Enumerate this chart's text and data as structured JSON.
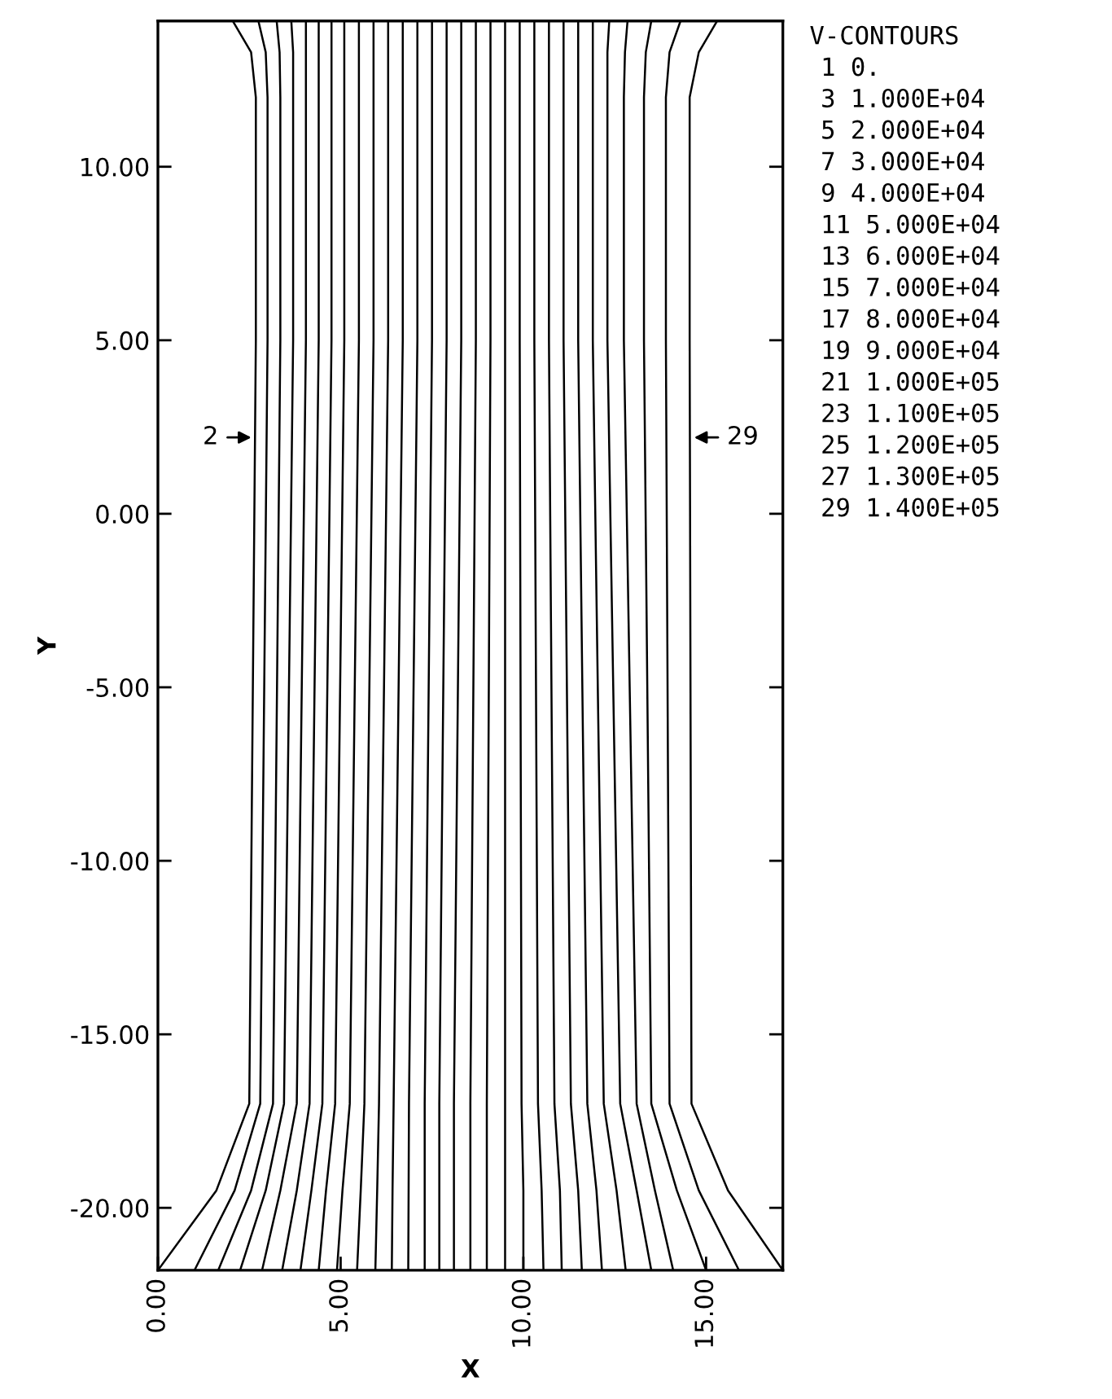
{
  "chart_data": {
    "type": "line",
    "xlabel": "X",
    "ylabel": "Y",
    "xlim": [
      0,
      17.1
    ],
    "ylim": [
      -21.8,
      14.2
    ],
    "xticks": [
      {
        "value": 0,
        "label": "0.00"
      },
      {
        "value": 5,
        "label": "5.00"
      },
      {
        "value": 10,
        "label": "10.00"
      },
      {
        "value": 15,
        "label": "15.00"
      }
    ],
    "yticks": [
      {
        "value": -20,
        "label": "-20.00"
      },
      {
        "value": -15,
        "label": "-15.00"
      },
      {
        "value": -10,
        "label": "-10.00"
      },
      {
        "value": -5,
        "label": "-5.00"
      },
      {
        "value": 0,
        "label": "0.00"
      },
      {
        "value": 5,
        "label": "5.00"
      },
      {
        "value": 10,
        "label": "10.00"
      }
    ],
    "grid": false,
    "marker": "none",
    "line_style": "solid",
    "legend_title": "V-CONTOURS",
    "annotations": [
      {
        "text": "2",
        "x": 2.68,
        "y": 2.2
      },
      {
        "text": "29",
        "x": 14.55,
        "y": 2.2
      },
      "1 0.",
      "3 1.000E+04",
      "5 2.000E+04",
      "7 3.000E+04",
      "9 4.000E+04",
      "11 5.000E+04",
      "13 6.000E+04",
      "15 7.000E+04",
      "17 8.000E+04",
      "19 9.000E+04",
      "21 1.000E+05",
      "23 1.100E+05",
      "25 1.200E+05",
      "27 1.300E+05",
      "29 1.400E+05"
    ],
    "series": [
      {
        "color": "#000000",
        "x": [
          0,
          1.6,
          2.5,
          2.68,
          2.68,
          2.55,
          2.05
        ],
        "values": [
          -21.8,
          -19.5,
          -17,
          5,
          12,
          13.3,
          14.2
        ]
      },
      {
        "color": "#000000",
        "x": [
          1.0,
          2.1,
          2.8,
          3.0,
          3.0,
          2.95,
          2.75
        ],
        "values": [
          -21.8,
          -19.5,
          -17,
          5,
          12,
          13.3,
          14.2
        ]
      },
      {
        "color": "#000000",
        "x": [
          1.65,
          2.55,
          3.15,
          3.35,
          3.35,
          3.33,
          3.25
        ],
        "values": [
          -21.8,
          -19.5,
          -17,
          5,
          12,
          13.3,
          14.2
        ]
      },
      {
        "color": "#000000",
        "x": [
          2.25,
          2.95,
          3.45,
          3.7,
          3.7,
          3.7,
          3.65
        ],
        "values": [
          -21.8,
          -19.5,
          -17,
          5,
          12,
          13.3,
          14.2
        ]
      },
      {
        "color": "#000000",
        "x": [
          2.85,
          3.35,
          3.8,
          4.05,
          4.05,
          4.05,
          4.05
        ],
        "values": [
          -21.8,
          -19.5,
          -17,
          5,
          12,
          13.3,
          14.2
        ]
      },
      {
        "color": "#000000",
        "x": [
          3.4,
          3.8,
          4.15,
          4.4,
          4.4,
          4.4,
          4.4
        ],
        "values": [
          -21.8,
          -19.5,
          -17,
          5,
          12,
          13.3,
          14.2
        ]
      },
      {
        "color": "#000000",
        "x": [
          3.9,
          4.2,
          4.5,
          4.75,
          4.75,
          4.75,
          4.75
        ],
        "values": [
          -21.8,
          -19.5,
          -17,
          5,
          12,
          13.3,
          14.2
        ]
      },
      {
        "color": "#000000",
        "x": [
          4.4,
          4.6,
          4.85,
          5.1,
          5.1,
          5.1,
          5.1
        ],
        "values": [
          -21.8,
          -19.5,
          -17,
          5,
          12,
          13.3,
          14.2
        ]
      },
      {
        "color": "#000000",
        "x": [
          4.9,
          5.05,
          5.25,
          5.5,
          5.5,
          5.5,
          5.5
        ],
        "values": [
          -21.8,
          -19.5,
          -17,
          5,
          12,
          13.3,
          14.2
        ]
      },
      {
        "color": "#000000",
        "x": [
          5.45,
          5.55,
          5.65,
          5.9,
          5.9,
          5.9,
          5.9
        ],
        "values": [
          -21.8,
          -19.5,
          -17,
          5,
          12,
          13.3,
          14.2
        ]
      },
      {
        "color": "#000000",
        "x": [
          5.95,
          6.0,
          6.05,
          6.3,
          6.3,
          6.3,
          6.3
        ],
        "values": [
          -21.8,
          -19.5,
          -17,
          5,
          12,
          13.3,
          14.2
        ]
      },
      {
        "color": "#000000",
        "x": [
          6.4,
          6.42,
          6.45,
          6.7,
          6.7,
          6.7,
          6.7
        ],
        "values": [
          -21.8,
          -19.5,
          -17,
          5,
          12,
          13.3,
          14.2
        ]
      },
      {
        "color": "#000000",
        "x": [
          6.85,
          6.86,
          6.87,
          7.1,
          7.1,
          7.1,
          7.1
        ],
        "values": [
          -21.8,
          -19.5,
          -17,
          5,
          12,
          13.3,
          14.2
        ]
      },
      {
        "color": "#000000",
        "x": [
          7.3,
          7.3,
          7.3,
          7.5,
          7.5,
          7.5,
          7.5
        ],
        "values": [
          -21.8,
          -19.5,
          -17,
          5,
          12,
          13.3,
          14.2
        ]
      },
      {
        "color": "#000000",
        "x": [
          7.7,
          7.7,
          7.7,
          7.9,
          7.9,
          7.9,
          7.9
        ],
        "values": [
          -21.8,
          -19.5,
          -17,
          5,
          12,
          13.3,
          14.2
        ]
      },
      {
        "color": "#000000",
        "x": [
          8.1,
          8.1,
          8.1,
          8.3,
          8.3,
          8.3,
          8.3
        ],
        "values": [
          -21.8,
          -19.5,
          -17,
          5,
          12,
          13.3,
          14.2
        ]
      },
      {
        "color": "#000000",
        "x": [
          8.55,
          8.55,
          8.55,
          8.7,
          8.7,
          8.7,
          8.7
        ],
        "values": [
          -21.8,
          -19.5,
          -17,
          5,
          12,
          13.3,
          14.2
        ]
      },
      {
        "color": "#000000",
        "x": [
          9.0,
          9.0,
          9.0,
          9.1,
          9.1,
          9.1,
          9.1
        ],
        "values": [
          -21.8,
          -19.5,
          -17,
          5,
          12,
          13.3,
          14.2
        ]
      },
      {
        "color": "#000000",
        "x": [
          9.5,
          9.5,
          9.5,
          9.5,
          9.5,
          9.5,
          9.5
        ],
        "values": [
          -21.8,
          -19.5,
          -17,
          5,
          12,
          13.3,
          14.2
        ]
      },
      {
        "color": "#000000",
        "x": [
          10.0,
          10.0,
          9.95,
          9.9,
          9.9,
          9.9,
          9.9
        ],
        "values": [
          -21.8,
          -19.5,
          -17,
          5,
          12,
          13.3,
          14.2
        ]
      },
      {
        "color": "#000000",
        "x": [
          10.55,
          10.5,
          10.4,
          10.3,
          10.3,
          10.3,
          10.3
        ],
        "values": [
          -21.8,
          -19.5,
          -17,
          5,
          12,
          13.3,
          14.2
        ]
      },
      {
        "color": "#000000",
        "x": [
          11.05,
          11.0,
          10.85,
          10.7,
          10.7,
          10.7,
          10.7
        ],
        "values": [
          -21.8,
          -19.5,
          -17,
          5,
          12,
          13.3,
          14.2
        ]
      },
      {
        "color": "#000000",
        "x": [
          11.6,
          11.5,
          11.3,
          11.1,
          11.1,
          11.1,
          11.1
        ],
        "values": [
          -21.8,
          -19.5,
          -17,
          5,
          12,
          13.3,
          14.2
        ]
      },
      {
        "color": "#000000",
        "x": [
          12.15,
          12.0,
          11.75,
          11.5,
          11.5,
          11.5,
          11.5
        ],
        "values": [
          -21.8,
          -19.5,
          -17,
          5,
          12,
          13.3,
          14.2
        ]
      },
      {
        "color": "#000000",
        "x": [
          12.8,
          12.55,
          12.2,
          11.9,
          11.9,
          11.9,
          11.9
        ],
        "values": [
          -21.8,
          -19.5,
          -17,
          5,
          12,
          13.3,
          14.2
        ]
      },
      {
        "color": "#000000",
        "x": [
          13.5,
          13.1,
          12.65,
          12.3,
          12.3,
          12.3,
          12.35
        ],
        "values": [
          -21.8,
          -19.5,
          -17,
          5,
          12,
          13.3,
          14.2
        ]
      },
      {
        "color": "#000000",
        "x": [
          14.1,
          13.6,
          13.1,
          12.75,
          12.75,
          12.78,
          12.85
        ],
        "values": [
          -21.8,
          -19.5,
          -17,
          5,
          12,
          13.3,
          14.2
        ]
      },
      {
        "color": "#000000",
        "x": [
          15.0,
          14.2,
          13.5,
          13.3,
          13.3,
          13.35,
          13.5
        ],
        "values": [
          -21.8,
          -19.5,
          -17,
          5,
          12,
          13.3,
          14.2
        ]
      },
      {
        "color": "#000000",
        "x": [
          15.9,
          14.8,
          14.0,
          13.9,
          13.9,
          14.0,
          14.3
        ],
        "values": [
          -21.8,
          -19.5,
          -17,
          5,
          12,
          13.3,
          14.2
        ]
      },
      {
        "color": "#000000",
        "x": [
          17.1,
          15.6,
          14.6,
          14.55,
          14.55,
          14.8,
          15.3
        ],
        "values": [
          -21.8,
          -19.5,
          -17,
          5,
          12,
          13.3,
          14.2
        ]
      }
    ]
  }
}
